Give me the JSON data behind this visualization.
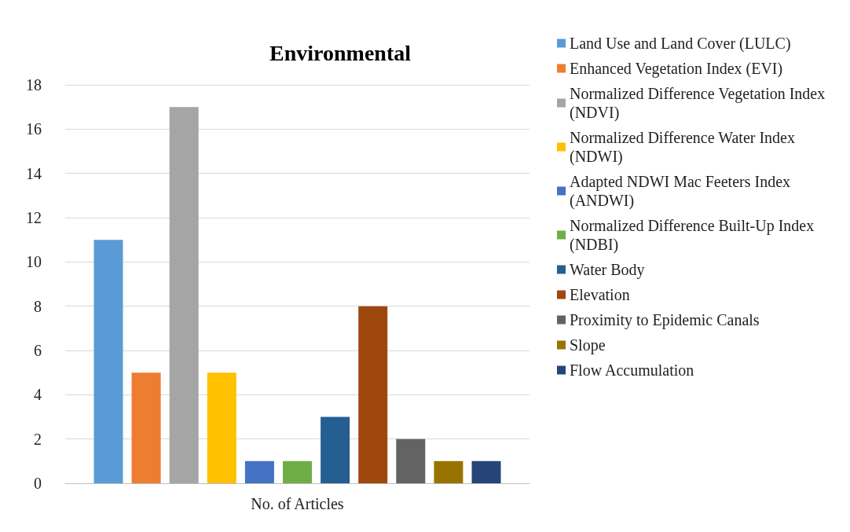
{
  "chart_data": {
    "type": "bar",
    "title": "Environmental",
    "categories": [
      "No. of Articles"
    ],
    "series": [
      {
        "name": "Land Use and Land Cover (LULC)",
        "color": "#5b9bd5",
        "values": [
          11
        ]
      },
      {
        "name": "Enhanced Vegetation Index (EVI)",
        "color": "#ed7d31",
        "values": [
          5
        ]
      },
      {
        "name": "Normalized Difference Vegetation Index (NDVI)",
        "color": "#a5a5a5",
        "values": [
          17
        ]
      },
      {
        "name": "Normalized Difference Water Index (NDWI)",
        "color": "#ffc000",
        "values": [
          5
        ]
      },
      {
        "name": "Adapted NDWI Mac Feeters Index (ANDWI)",
        "color": "#4472c4",
        "values": [
          1
        ]
      },
      {
        "name": "Normalized Difference Built-Up Index (NDBI)",
        "color": "#70ad47",
        "values": [
          1
        ]
      },
      {
        "name": "Water Body",
        "color": "#255e91",
        "values": [
          3
        ]
      },
      {
        "name": "Elevation",
        "color": "#9e480e",
        "values": [
          8
        ]
      },
      {
        "name": "Proximity to Epidemic Canals",
        "color": "#636363",
        "values": [
          2
        ]
      },
      {
        "name": "Slope",
        "color": "#997300",
        "values": [
          1
        ]
      },
      {
        "name": "Flow Accumulation",
        "color": "#264478",
        "values": [
          1
        ]
      }
    ],
    "ylim": [
      0,
      18
    ],
    "yticks": [
      0,
      2,
      4,
      6,
      8,
      10,
      12,
      14,
      16,
      18
    ],
    "grid": "y",
    "legend": "right"
  }
}
